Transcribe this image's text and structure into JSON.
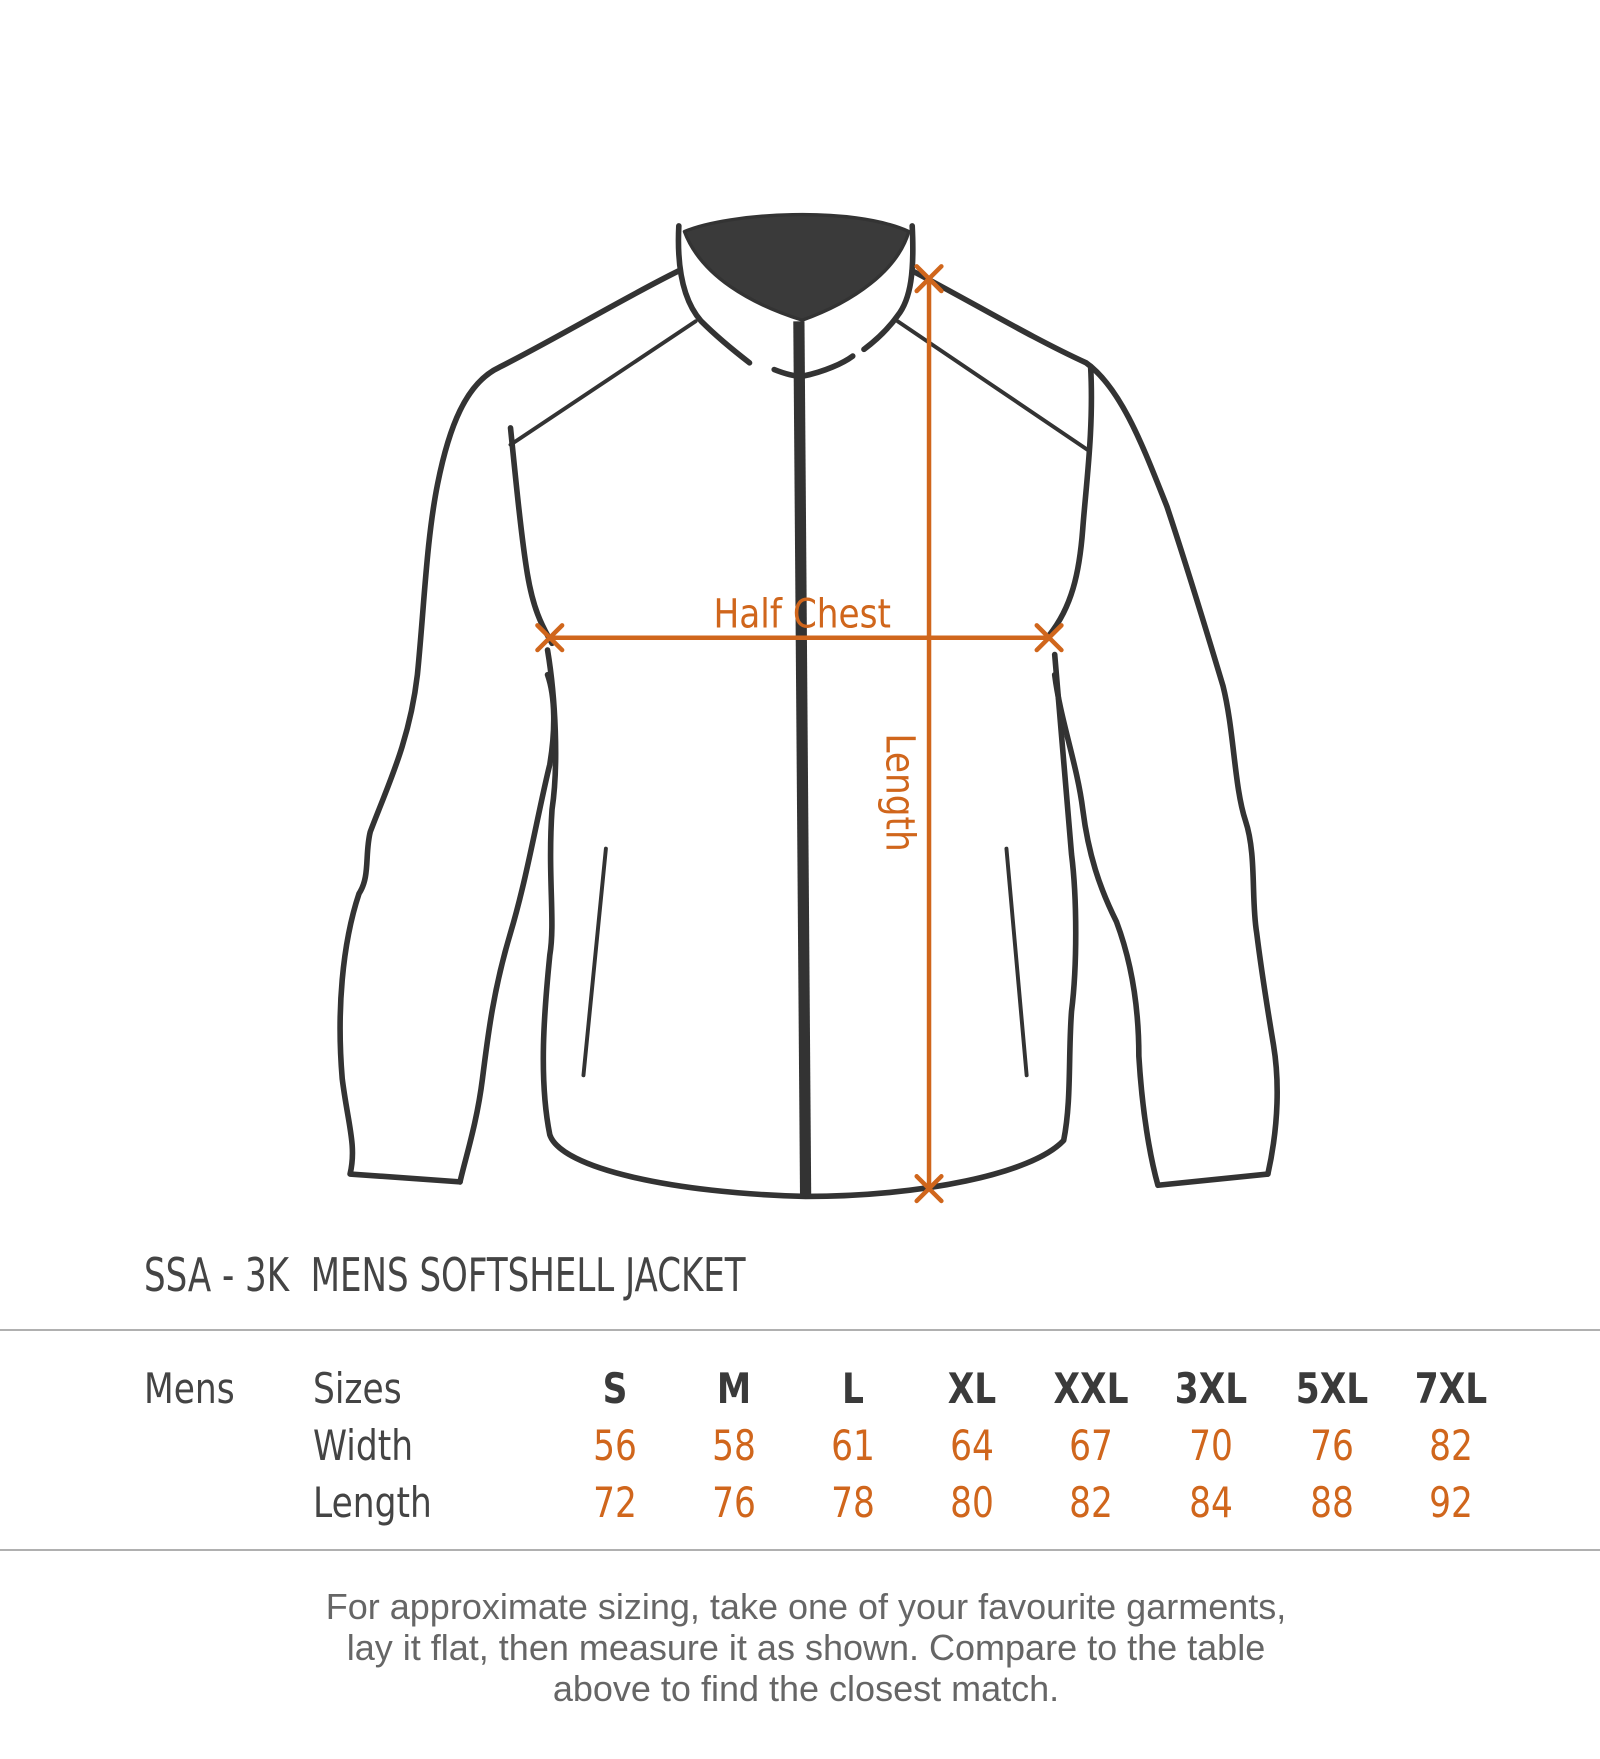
{
  "diagram": {
    "half_chest_label": "Half Chest",
    "length_label": "Length",
    "accent_color": "#d0661c",
    "outline_color": "#333333"
  },
  "title": "SSA - 3K  MENS SOFTSHELL JACKET",
  "table": {
    "group_label": "Mens",
    "row_labels": [
      "Sizes",
      "Width",
      "Length"
    ],
    "sizes": [
      "S",
      "M",
      "L",
      "XL",
      "XXL",
      "3XL",
      "5XL",
      "7XL"
    ],
    "width": [
      "56",
      "58",
      "61",
      "64",
      "67",
      "70",
      "76",
      "82"
    ],
    "length": [
      "72",
      "76",
      "78",
      "80",
      "82",
      "84",
      "88",
      "92"
    ]
  },
  "note_lines": [
    "For approximate sizing, take one of your favourite garments,",
    "lay it flat, then measure it as shown. Compare to the table",
    "above to find the closest match."
  ]
}
